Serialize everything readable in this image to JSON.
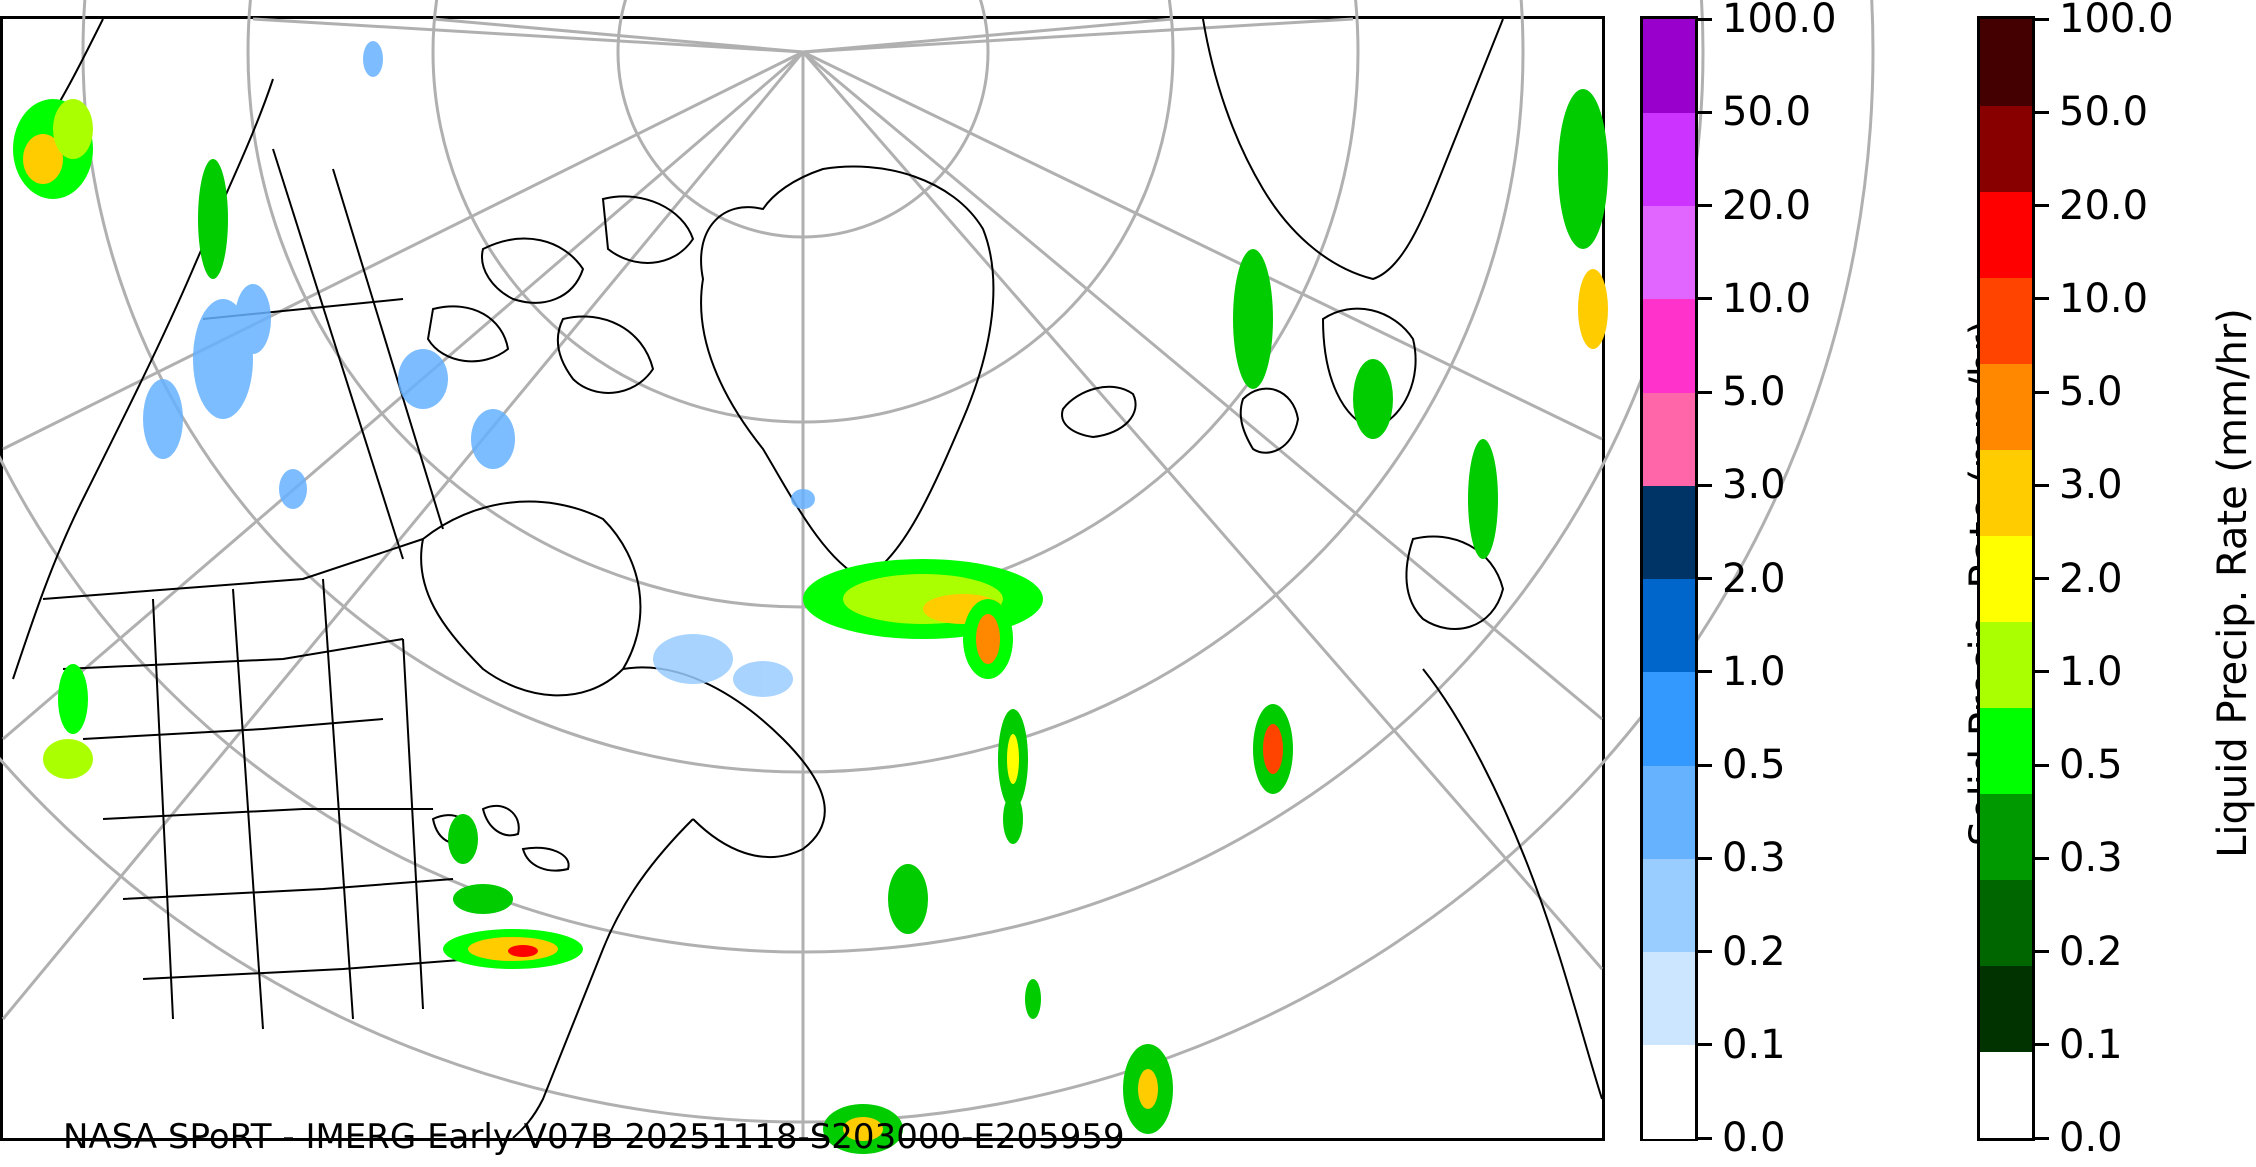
{
  "credit": "NASA SPoRT - IMERG Early V07B 20251118-S203000-E205959",
  "colorbars": [
    {
      "id": "solid",
      "title": "Solid Precip. Rate (mm/hr)",
      "ticks": [
        "0.0",
        "0.1",
        "0.2",
        "0.3",
        "0.5",
        "1.0",
        "2.0",
        "3.0",
        "5.0",
        "10.0",
        "20.0",
        "50.0",
        "100.0"
      ],
      "colors": [
        "#ffffff",
        "#cce6ff",
        "#99ccff",
        "#66b2ff",
        "#3399ff",
        "#0066cc",
        "#003366",
        "#ff66aa",
        "#ff33cc",
        "#e066ff",
        "#cc33ff",
        "#9900cc"
      ]
    },
    {
      "id": "liquid",
      "title": "Liquid Precip. Rate (mm/hr)",
      "ticks": [
        "0.0",
        "0.1",
        "0.2",
        "0.3",
        "0.5",
        "1.0",
        "2.0",
        "3.0",
        "5.0",
        "10.0",
        "20.0",
        "50.0",
        "100.0"
      ],
      "colors": [
        "#ffffff",
        "#003300",
        "#006600",
        "#009900",
        "#00ff00",
        "#aaff00",
        "#ffff00",
        "#ffcc00",
        "#ff8800",
        "#ff4400",
        "#ff0000",
        "#880000",
        "#440000"
      ]
    }
  ],
  "map": {
    "projection": "north-polar stereographic",
    "coastline_color": "#000000",
    "graticule_color": "#b0b0b0"
  }
}
